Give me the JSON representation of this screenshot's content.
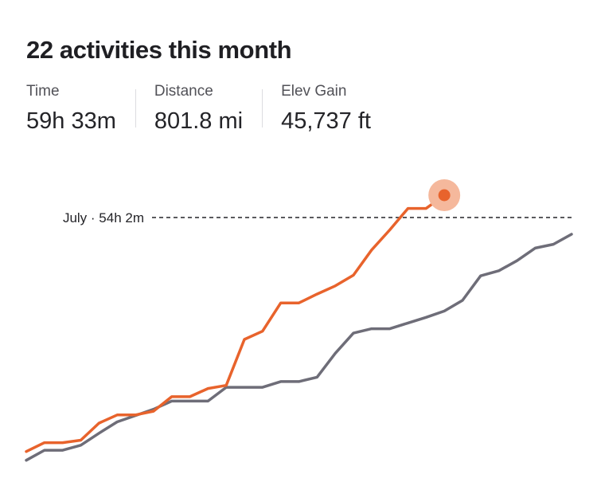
{
  "header": {
    "title": "22 activities this month"
  },
  "stats": [
    {
      "label": "Time",
      "value": "59h 33m"
    },
    {
      "label": "Distance",
      "value": "801.8 mi"
    },
    {
      "label": "Elev Gain",
      "value": "45,737 ft"
    }
  ],
  "reference": {
    "label": "July · 54h 2m"
  },
  "colors": {
    "current": "#e8632c",
    "previous": "#6e6d78",
    "marker_halo": "#f5b89c",
    "reference_line": "#242428"
  },
  "chart_data": {
    "type": "line",
    "y_unit": "hours",
    "ylim": [
      0,
      60
    ],
    "reference_value": 54.03,
    "series": [
      {
        "key": "current",
        "values": [
          0.8,
          2.2,
          2.2,
          2.6,
          5.3,
          6.6,
          6.6,
          7.2,
          9.5,
          9.5,
          10.8,
          11.3,
          18.6,
          19.9,
          24.4,
          24.4,
          25.8,
          27.1,
          28.8,
          32.8,
          36.0,
          39.4,
          39.4,
          41.5
        ]
      },
      {
        "key": "previous",
        "values": [
          -0.6,
          1.0,
          1.0,
          1.8,
          3.7,
          5.5,
          6.5,
          7.5,
          8.8,
          8.8,
          8.8,
          11.0,
          11.0,
          11.0,
          11.9,
          11.9,
          12.6,
          16.4,
          19.6,
          20.3,
          20.3,
          21.2,
          22.1,
          23.1,
          24.8,
          28.7,
          29.5,
          31.1,
          33.1,
          33.7,
          35.3
        ]
      }
    ]
  }
}
